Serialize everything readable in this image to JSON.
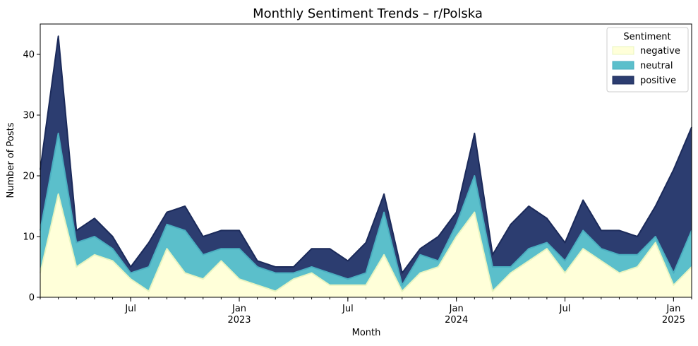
{
  "chart_data": {
    "type": "area",
    "stacked": true,
    "title": "Monthly Sentiment Trends – r/Polska",
    "xlabel": "Month",
    "ylabel": "Number of Posts",
    "ylim": [
      0,
      45
    ],
    "y_ticks": [
      0,
      10,
      20,
      30,
      40
    ],
    "x_ticks": [
      {
        "index": 5,
        "label": "Jul",
        "year": ""
      },
      {
        "index": 11,
        "label": "Jan",
        "year": "2023"
      },
      {
        "index": 17,
        "label": "Jul",
        "year": ""
      },
      {
        "index": 23,
        "label": "Jan",
        "year": "2024"
      },
      {
        "index": 29,
        "label": "Jul",
        "year": ""
      },
      {
        "index": 35,
        "label": "Jan",
        "year": "2025"
      }
    ],
    "months": [
      "2022-02",
      "2022-03",
      "2022-04",
      "2022-05",
      "2022-06",
      "2022-07",
      "2022-08",
      "2022-09",
      "2022-10",
      "2022-11",
      "2022-12",
      "2023-01",
      "2023-02",
      "2023-03",
      "2023-04",
      "2023-05",
      "2023-06",
      "2023-07",
      "2023-08",
      "2023-09",
      "2023-10",
      "2023-11",
      "2023-12",
      "2024-01",
      "2024-02",
      "2024-03",
      "2024-04",
      "2024-05",
      "2024-06",
      "2024-07",
      "2024-08",
      "2024-09",
      "2024-10",
      "2024-11",
      "2024-12",
      "2025-01",
      "2025-02"
    ],
    "legend_title": "Sentiment",
    "legend_position": "top-right",
    "series": [
      {
        "name": "negative",
        "color": "#ffffd9",
        "edge": "#e8f4c0",
        "values": [
          4,
          17,
          5,
          7,
          6,
          3,
          1,
          8,
          4,
          3,
          6,
          3,
          2,
          1,
          3,
          4,
          2,
          2,
          2,
          7,
          1,
          4,
          5,
          10,
          14,
          1,
          4,
          6,
          8,
          4,
          8,
          6,
          4,
          5,
          9,
          2,
          5
        ]
      },
      {
        "name": "neutral",
        "color": "#5bbfcb",
        "edge": "#4aaec0",
        "values": [
          7,
          10,
          4,
          3,
          2,
          1,
          4,
          4,
          7,
          4,
          2,
          5,
          3,
          3,
          1,
          1,
          2,
          1,
          2,
          7,
          1,
          3,
          1,
          2,
          6,
          4,
          1,
          2,
          1,
          2,
          3,
          2,
          3,
          2,
          1,
          2,
          6
        ]
      },
      {
        "name": "positive",
        "color": "#2c3d70",
        "edge": "#1b2a5a",
        "values": [
          10,
          16,
          2,
          3,
          2,
          1,
          4,
          2,
          4,
          3,
          3,
          3,
          1,
          1,
          1,
          3,
          4,
          3,
          5,
          3,
          2,
          1,
          4,
          2,
          7,
          2,
          7,
          7,
          4,
          3,
          5,
          3,
          4,
          3,
          5,
          17,
          17
        ]
      }
    ]
  }
}
